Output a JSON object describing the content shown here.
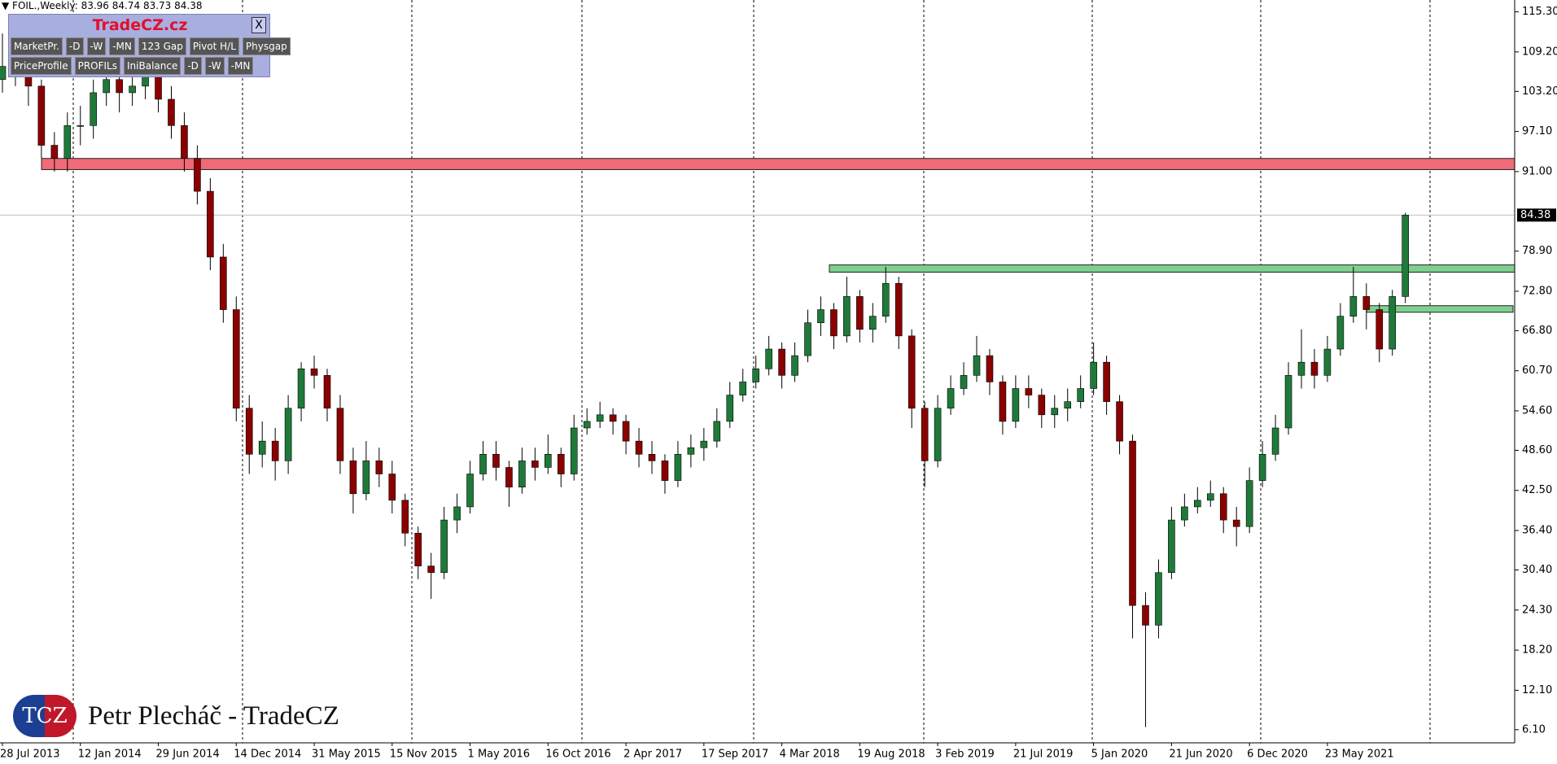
{
  "header": {
    "symbol": "FOIL.,Weekly:",
    "open": 83.96,
    "high": 84.74,
    "low": 83.73,
    "close": 84.38
  },
  "panel": {
    "title": "TradeCZ.cz",
    "close": "X",
    "row1": [
      "MarketPr.",
      "-D",
      "-W",
      "-MN",
      "123 Gap",
      "Pivot H/L",
      "Physgap"
    ],
    "row2": [
      "PriceProfile",
      "PROFILs",
      "IniBalance",
      "-D",
      "-W",
      "-MN"
    ]
  },
  "watermark": {
    "logo": "TCZ",
    "text": "Petr Plecháč - TradeCZ"
  },
  "chart_data": {
    "type": "candlestick",
    "categories": [
      "28 Jul 2013",
      null,
      null,
      null,
      null,
      null,
      "12 Jan 2014",
      null,
      null,
      null,
      null,
      null,
      "29 Jun 2014",
      null,
      null,
      null,
      null,
      null,
      "14 Dec 2014",
      null,
      null,
      null,
      null,
      null,
      "31 May 2015",
      null,
      null,
      null,
      null,
      null,
      "15 Nov 2015",
      null,
      null,
      null,
      null,
      null,
      "1 May 2016",
      null,
      null,
      null,
      null,
      null,
      "16 Oct 2016",
      null,
      null,
      null,
      null,
      null,
      "2 Apr 2017",
      null,
      null,
      null,
      null,
      null,
      "17 Sep 2017",
      null,
      null,
      null,
      null,
      null,
      "4 Mar 2018",
      null,
      null,
      null,
      null,
      null,
      "19 Aug 2018",
      null,
      null,
      null,
      null,
      null,
      "3 Feb 2019",
      null,
      null,
      null,
      null,
      null,
      "21 Jul 2019",
      null,
      null,
      null,
      null,
      null,
      "5 Jan 2020",
      null,
      null,
      null,
      null,
      null,
      "21 Jun 2020",
      null,
      null,
      null,
      null,
      null,
      "6 Dec 2020",
      null,
      null,
      null,
      null,
      null,
      "23 May 2021",
      null,
      null,
      null,
      null,
      null,
      null
    ],
    "open": [
      105,
      107,
      108,
      104,
      95,
      93,
      98,
      98,
      103,
      105,
      103,
      104,
      107,
      102,
      98,
      93,
      88,
      78,
      70,
      55,
      48,
      50,
      47,
      55,
      61,
      60,
      55,
      47,
      42,
      47,
      45,
      41,
      36,
      31,
      30,
      38,
      40,
      45,
      48,
      46,
      43,
      47,
      46,
      48,
      45,
      52,
      53,
      54,
      53,
      50,
      48,
      47,
      44,
      48,
      49,
      50,
      53,
      57,
      59,
      61,
      64,
      60,
      63,
      68,
      70,
      66,
      72,
      67,
      69,
      74,
      66,
      55,
      47,
      55,
      58,
      60,
      63,
      59,
      53,
      58,
      57,
      54,
      55,
      56,
      58,
      62,
      56,
      50,
      25,
      22,
      30,
      38,
      40,
      41,
      42,
      38,
      37,
      44,
      48,
      52,
      60,
      62,
      60,
      64,
      69,
      72,
      70,
      64,
      72
    ],
    "high": [
      112,
      111,
      109,
      105,
      97,
      100,
      101,
      105,
      107,
      106,
      106,
      109,
      108,
      104,
      100,
      95,
      90,
      80,
      72,
      57,
      53,
      52,
      57,
      62,
      63,
      61,
      57,
      49,
      50,
      49,
      47,
      42,
      37,
      33,
      40,
      42,
      47,
      50,
      50,
      47,
      49,
      49,
      51,
      49,
      54,
      55,
      56,
      55,
      54,
      52,
      50,
      48,
      50,
      51,
      52,
      55,
      59,
      61,
      63,
      66,
      65,
      65,
      70,
      72,
      71,
      75,
      73,
      71,
      76.5,
      75,
      67,
      56,
      57,
      60,
      62,
      66,
      64,
      60,
      60,
      60,
      58,
      57,
      58,
      60,
      65,
      63,
      57,
      51,
      27,
      32,
      40,
      42,
      43,
      44,
      43,
      40,
      46,
      50,
      54,
      62,
      67,
      64,
      66,
      71,
      76.5,
      74,
      71,
      73,
      84.74
    ],
    "low": [
      103,
      104,
      101,
      93,
      91,
      91,
      95,
      96,
      101,
      100,
      101,
      102,
      100,
      96,
      91,
      86,
      76,
      68,
      53,
      45,
      46,
      44,
      45,
      53,
      58,
      53,
      45,
      39,
      41,
      43,
      39,
      34,
      29,
      26,
      29,
      36,
      39,
      44,
      44,
      40,
      42,
      44,
      45,
      43,
      44,
      51,
      52,
      51,
      48,
      46,
      45,
      42,
      43,
      46,
      47,
      49,
      52,
      56,
      58,
      60,
      58,
      59,
      62,
      66,
      64,
      65,
      65,
      65,
      68,
      64,
      52,
      43,
      46,
      54,
      57,
      59,
      57,
      51,
      52,
      55,
      52,
      52,
      53,
      55,
      57,
      54,
      48,
      20,
      6.5,
      20,
      29,
      37,
      39,
      40,
      36,
      34,
      36,
      43,
      47,
      51,
      58,
      58,
      59,
      63,
      68,
      67,
      62,
      63,
      71
    ],
    "close": [
      107,
      108,
      104,
      95,
      93,
      98,
      98,
      103,
      105,
      103,
      104,
      107,
      102,
      98,
      93,
      88,
      78,
      70,
      55,
      48,
      50,
      47,
      55,
      61,
      60,
      55,
      47,
      42,
      47,
      45,
      41,
      36,
      31,
      30,
      38,
      40,
      45,
      48,
      46,
      43,
      47,
      46,
      48,
      45,
      52,
      53,
      54,
      53,
      50,
      48,
      47,
      44,
      48,
      49,
      50,
      53,
      57,
      59,
      61,
      64,
      60,
      63,
      68,
      70,
      66,
      72,
      67,
      69,
      74,
      66,
      55,
      47,
      55,
      58,
      60,
      63,
      59,
      53,
      58,
      57,
      54,
      55,
      56,
      58,
      62,
      56,
      50,
      25,
      22,
      30,
      38,
      40,
      41,
      42,
      38,
      37,
      44,
      48,
      52,
      60,
      62,
      60,
      64,
      69,
      72,
      70,
      64,
      72,
      84.38
    ],
    "up_color": "#1f7a3a",
    "down_color": "#8b0000",
    "ylim": [
      4.1,
      117.1
    ],
    "yticks": [
      {
        "value": 115.3,
        "label": "115.30"
      },
      {
        "value": 109.2,
        "label": "109.20"
      },
      {
        "value": 103.2,
        "label": "103.20"
      },
      {
        "value": 97.1,
        "label": "97.10"
      },
      {
        "value": 91,
        "label": "91.00"
      },
      {
        "value": 78.9,
        "label": "78.90"
      },
      {
        "value": 72.8,
        "label": "72.80"
      },
      {
        "value": 66.8,
        "label": "66.80"
      },
      {
        "value": 60.7,
        "label": "60.70"
      },
      {
        "value": 54.6,
        "label": "54.60"
      },
      {
        "value": 48.6,
        "label": "48.60"
      },
      {
        "value": 42.5,
        "label": "42.50"
      },
      {
        "value": 36.4,
        "label": "36.40"
      },
      {
        "value": 30.4,
        "label": "30.40"
      },
      {
        "value": 24.3,
        "label": "24.30"
      },
      {
        "value": 18.2,
        "label": "18.20"
      },
      {
        "value": 12.1,
        "label": "12.10"
      },
      {
        "value": 6.1,
        "label": "6.10"
      }
    ],
    "last_price": 84.38,
    "zones": [
      {
        "low": 91.3,
        "high": 93,
        "color": "#f06a78"
      },
      {
        "low": 75.7,
        "high": 76.8,
        "color": "#7fd08f"
      },
      {
        "low": 69.6,
        "high": 70.6,
        "color": "#7fd08f"
      }
    ]
  }
}
